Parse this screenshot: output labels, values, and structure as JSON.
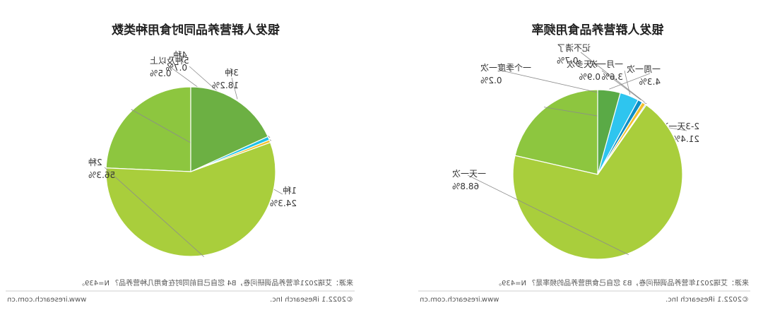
{
  "mirrored": true,
  "colors": {
    "title": "#222222",
    "text": "#333333",
    "footer": "#555555",
    "leader": "#8c8c8c",
    "divider": "#bfbfbf"
  },
  "chart_data": [
    {
      "type": "pie",
      "title": "银发人群营养品同时食用种类数",
      "slices": [
        {
          "label": "1种",
          "value": 24.3,
          "value_label": "24.3%",
          "color": "#8dc63f"
        },
        {
          "label": "2种",
          "value": 56.3,
          "value_label": "56.3%",
          "color": "#a9ce3c"
        },
        {
          "label": "5种及以上",
          "value": 0.5,
          "value_label": "0.5%",
          "color": "#f2c12e"
        },
        {
          "label": "4种",
          "value": 0.7,
          "value_label": "0.7%",
          "color": "#1fc1e8"
        },
        {
          "label": "3种",
          "value": 18.2,
          "value_label": "18.2%",
          "color": "#6cb043"
        }
      ],
      "source": "来源：艾瑞2021年营养品调研问卷，B4 您自己目前同时在食用几种营养品？ N=439。",
      "copyright": "©2022.1 iResearch Inc.",
      "website": "www.iresearch.com.cn"
    },
    {
      "type": "pie",
      "title": "银发人群营养品食用频率",
      "slices": [
        {
          "label": "2-3天一次",
          "value": 21.4,
          "value_label": "21.4%",
          "color": "#8dc63f"
        },
        {
          "label": "一天一次",
          "value": 68.8,
          "value_label": "68.8%",
          "color": "#a9ce3c"
        },
        {
          "label": "一个季度一次",
          "value": 0.2,
          "value_label": "0.2%",
          "color": "#1a9fd8"
        },
        {
          "label": "记不清了",
          "value": 0.7,
          "value_label": "0.7%",
          "color": "#f2c12e"
        },
        {
          "label": "一天多次",
          "value": 0.9,
          "value_label": "0.9%",
          "color": "#0d8fc6"
        },
        {
          "label": "一月一次",
          "value": 3.6,
          "value_label": "3.6%",
          "color": "#2ec5ef"
        },
        {
          "label": "一周一次",
          "value": 4.3,
          "value_label": "4.3%",
          "color": "#5aaa46"
        }
      ],
      "source": "来源：艾瑞2021年营养品调研问卷，B3 您自己食用营养品的频率是？ N=439。",
      "copyright": "©2022.1 iResearch Inc.",
      "website": "www.iresearch.com.cn"
    }
  ]
}
